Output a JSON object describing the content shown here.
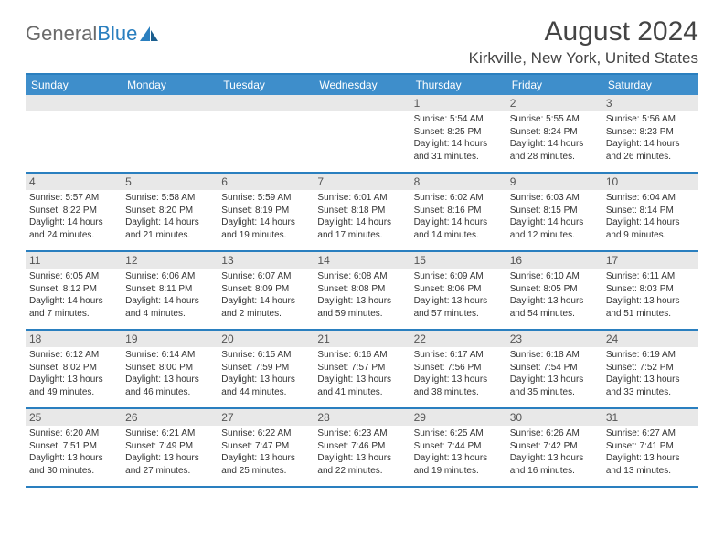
{
  "branding": {
    "logo_text_1": "General",
    "logo_text_2": "Blue",
    "logo_color_1": "#6b6b6b",
    "logo_color_2": "#2a7fbf"
  },
  "header": {
    "month_title": "August 2024",
    "location": "Kirkville, New York, United States"
  },
  "colors": {
    "header_bg": "#3e8ecb",
    "header_text": "#ffffff",
    "rule": "#2a7fbf",
    "daynum_bg": "#e8e8e8",
    "text": "#333333"
  },
  "day_names": [
    "Sunday",
    "Monday",
    "Tuesday",
    "Wednesday",
    "Thursday",
    "Friday",
    "Saturday"
  ],
  "weeks": [
    [
      {
        "n": "",
        "sr": "",
        "ss": "",
        "dl": "",
        "empty": true
      },
      {
        "n": "",
        "sr": "",
        "ss": "",
        "dl": "",
        "empty": true
      },
      {
        "n": "",
        "sr": "",
        "ss": "",
        "dl": "",
        "empty": true
      },
      {
        "n": "",
        "sr": "",
        "ss": "",
        "dl": "",
        "empty": true
      },
      {
        "n": "1",
        "sr": "Sunrise: 5:54 AM",
        "ss": "Sunset: 8:25 PM",
        "dl": "Daylight: 14 hours and 31 minutes."
      },
      {
        "n": "2",
        "sr": "Sunrise: 5:55 AM",
        "ss": "Sunset: 8:24 PM",
        "dl": "Daylight: 14 hours and 28 minutes."
      },
      {
        "n": "3",
        "sr": "Sunrise: 5:56 AM",
        "ss": "Sunset: 8:23 PM",
        "dl": "Daylight: 14 hours and 26 minutes."
      }
    ],
    [
      {
        "n": "4",
        "sr": "Sunrise: 5:57 AM",
        "ss": "Sunset: 8:22 PM",
        "dl": "Daylight: 14 hours and 24 minutes."
      },
      {
        "n": "5",
        "sr": "Sunrise: 5:58 AM",
        "ss": "Sunset: 8:20 PM",
        "dl": "Daylight: 14 hours and 21 minutes."
      },
      {
        "n": "6",
        "sr": "Sunrise: 5:59 AM",
        "ss": "Sunset: 8:19 PM",
        "dl": "Daylight: 14 hours and 19 minutes."
      },
      {
        "n": "7",
        "sr": "Sunrise: 6:01 AM",
        "ss": "Sunset: 8:18 PM",
        "dl": "Daylight: 14 hours and 17 minutes."
      },
      {
        "n": "8",
        "sr": "Sunrise: 6:02 AM",
        "ss": "Sunset: 8:16 PM",
        "dl": "Daylight: 14 hours and 14 minutes."
      },
      {
        "n": "9",
        "sr": "Sunrise: 6:03 AM",
        "ss": "Sunset: 8:15 PM",
        "dl": "Daylight: 14 hours and 12 minutes."
      },
      {
        "n": "10",
        "sr": "Sunrise: 6:04 AM",
        "ss": "Sunset: 8:14 PM",
        "dl": "Daylight: 14 hours and 9 minutes."
      }
    ],
    [
      {
        "n": "11",
        "sr": "Sunrise: 6:05 AM",
        "ss": "Sunset: 8:12 PM",
        "dl": "Daylight: 14 hours and 7 minutes."
      },
      {
        "n": "12",
        "sr": "Sunrise: 6:06 AM",
        "ss": "Sunset: 8:11 PM",
        "dl": "Daylight: 14 hours and 4 minutes."
      },
      {
        "n": "13",
        "sr": "Sunrise: 6:07 AM",
        "ss": "Sunset: 8:09 PM",
        "dl": "Daylight: 14 hours and 2 minutes."
      },
      {
        "n": "14",
        "sr": "Sunrise: 6:08 AM",
        "ss": "Sunset: 8:08 PM",
        "dl": "Daylight: 13 hours and 59 minutes."
      },
      {
        "n": "15",
        "sr": "Sunrise: 6:09 AM",
        "ss": "Sunset: 8:06 PM",
        "dl": "Daylight: 13 hours and 57 minutes."
      },
      {
        "n": "16",
        "sr": "Sunrise: 6:10 AM",
        "ss": "Sunset: 8:05 PM",
        "dl": "Daylight: 13 hours and 54 minutes."
      },
      {
        "n": "17",
        "sr": "Sunrise: 6:11 AM",
        "ss": "Sunset: 8:03 PM",
        "dl": "Daylight: 13 hours and 51 minutes."
      }
    ],
    [
      {
        "n": "18",
        "sr": "Sunrise: 6:12 AM",
        "ss": "Sunset: 8:02 PM",
        "dl": "Daylight: 13 hours and 49 minutes."
      },
      {
        "n": "19",
        "sr": "Sunrise: 6:14 AM",
        "ss": "Sunset: 8:00 PM",
        "dl": "Daylight: 13 hours and 46 minutes."
      },
      {
        "n": "20",
        "sr": "Sunrise: 6:15 AM",
        "ss": "Sunset: 7:59 PM",
        "dl": "Daylight: 13 hours and 44 minutes."
      },
      {
        "n": "21",
        "sr": "Sunrise: 6:16 AM",
        "ss": "Sunset: 7:57 PM",
        "dl": "Daylight: 13 hours and 41 minutes."
      },
      {
        "n": "22",
        "sr": "Sunrise: 6:17 AM",
        "ss": "Sunset: 7:56 PM",
        "dl": "Daylight: 13 hours and 38 minutes."
      },
      {
        "n": "23",
        "sr": "Sunrise: 6:18 AM",
        "ss": "Sunset: 7:54 PM",
        "dl": "Daylight: 13 hours and 35 minutes."
      },
      {
        "n": "24",
        "sr": "Sunrise: 6:19 AM",
        "ss": "Sunset: 7:52 PM",
        "dl": "Daylight: 13 hours and 33 minutes."
      }
    ],
    [
      {
        "n": "25",
        "sr": "Sunrise: 6:20 AM",
        "ss": "Sunset: 7:51 PM",
        "dl": "Daylight: 13 hours and 30 minutes."
      },
      {
        "n": "26",
        "sr": "Sunrise: 6:21 AM",
        "ss": "Sunset: 7:49 PM",
        "dl": "Daylight: 13 hours and 27 minutes."
      },
      {
        "n": "27",
        "sr": "Sunrise: 6:22 AM",
        "ss": "Sunset: 7:47 PM",
        "dl": "Daylight: 13 hours and 25 minutes."
      },
      {
        "n": "28",
        "sr": "Sunrise: 6:23 AM",
        "ss": "Sunset: 7:46 PM",
        "dl": "Daylight: 13 hours and 22 minutes."
      },
      {
        "n": "29",
        "sr": "Sunrise: 6:25 AM",
        "ss": "Sunset: 7:44 PM",
        "dl": "Daylight: 13 hours and 19 minutes."
      },
      {
        "n": "30",
        "sr": "Sunrise: 6:26 AM",
        "ss": "Sunset: 7:42 PM",
        "dl": "Daylight: 13 hours and 16 minutes."
      },
      {
        "n": "31",
        "sr": "Sunrise: 6:27 AM",
        "ss": "Sunset: 7:41 PM",
        "dl": "Daylight: 13 hours and 13 minutes."
      }
    ]
  ]
}
